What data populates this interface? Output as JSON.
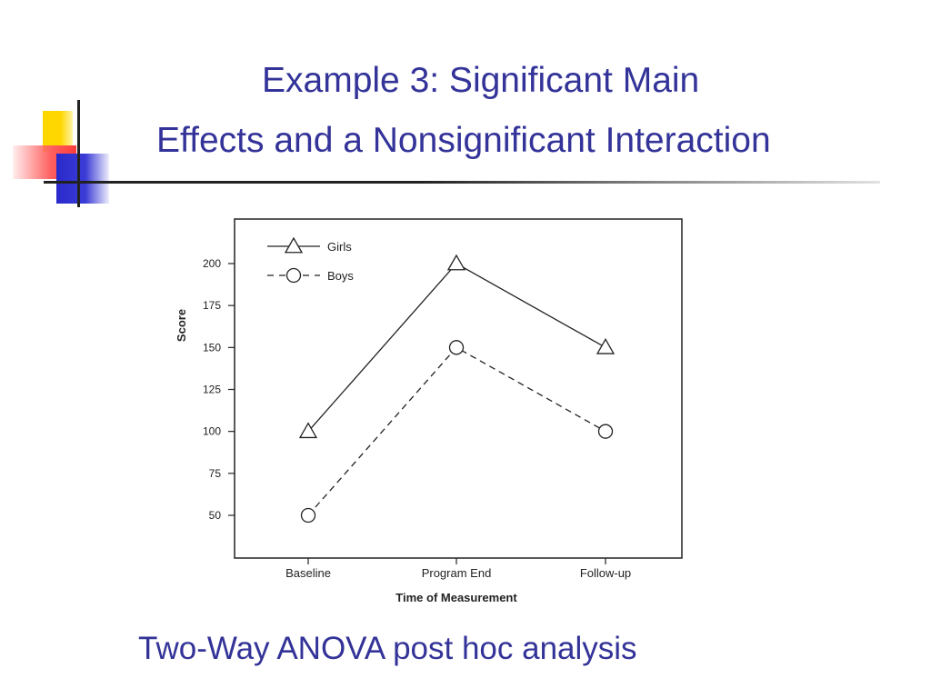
{
  "slide": {
    "title_line_1": "Example 3: Significant Main",
    "title_line_2": "Effects and a Nonsignificant Interaction",
    "caption": "Two-Way ANOVA post hoc analysis",
    "colors": {
      "title": "#333399",
      "deco_yellow": "#ffd700",
      "deco_red": "#ff4d4d",
      "deco_blue": "#3333cc",
      "rule": "#333333"
    }
  },
  "chart_data": {
    "type": "line",
    "categories": [
      "Baseline",
      "Program End",
      "Follow-up"
    ],
    "series": [
      {
        "name": "Girls",
        "values": [
          100,
          200,
          150
        ],
        "marker": "triangle",
        "line": "solid"
      },
      {
        "name": "Boys",
        "values": [
          50,
          150,
          100
        ],
        "marker": "circle",
        "line": "dashed"
      }
    ],
    "xlabel": "Time of Measurement",
    "ylabel": "Score",
    "yticks": [
      50,
      75,
      100,
      125,
      150,
      175,
      200
    ],
    "legend": "top-left",
    "grid": false
  }
}
